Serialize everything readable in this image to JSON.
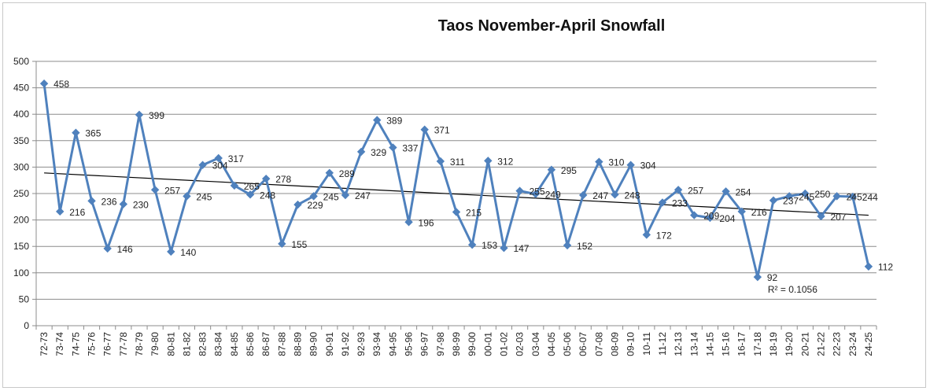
{
  "chart_data": {
    "type": "line",
    "title": "Taos November-April Snowfall",
    "xlabel": "",
    "ylabel": "",
    "ylim": [
      0,
      500
    ],
    "y_ticks": [
      "0",
      "50",
      "100",
      "150",
      "200",
      "250",
      "300",
      "350",
      "400",
      "450",
      "500"
    ],
    "grid": true,
    "legend": "none",
    "categories": [
      "72-73",
      "73-74",
      "74-75",
      "75-76",
      "76-77",
      "77-78",
      "78-79",
      "79-80",
      "80-81",
      "81-82",
      "82-83",
      "83-84",
      "84-85",
      "85-86",
      "86-87",
      "87-88",
      "88-89",
      "89-90",
      "90-91",
      "91-92",
      "92-93",
      "93-94",
      "94-95",
      "95-96",
      "96-97",
      "97-98",
      "98-99",
      "99-00",
      "00-01",
      "01-02",
      "02-03",
      "03-04",
      "04-05",
      "05-06",
      "06-07",
      "07-08",
      "08-09",
      "09-10",
      "10-11",
      "11-12",
      "12-13",
      "13-14",
      "14-15",
      "15-16",
      "16-17",
      "17-18",
      "18-19",
      "19-20",
      "20-21",
      "21-22",
      "22-23",
      "23-24",
      "24-25"
    ],
    "series": [
      {
        "color": "#4f81bd",
        "values": [
          458,
          216,
          365,
          236,
          146,
          230,
          399,
          257,
          140,
          245,
          304,
          317,
          265,
          248,
          278,
          155,
          229,
          245,
          289,
          247,
          329,
          389,
          337,
          196,
          371,
          311,
          215,
          153,
          312,
          147,
          255,
          249,
          295,
          152,
          247,
          310,
          248,
          304,
          172,
          233,
          257,
          209,
          204,
          254,
          216,
          92,
          237,
          245,
          250,
          207,
          245,
          244,
          112
        ]
      }
    ],
    "trendline": {
      "type": "linear",
      "start_value": 289,
      "end_value": 209,
      "color": "#000000",
      "r_squared_label": "R² = 0.1056"
    }
  }
}
